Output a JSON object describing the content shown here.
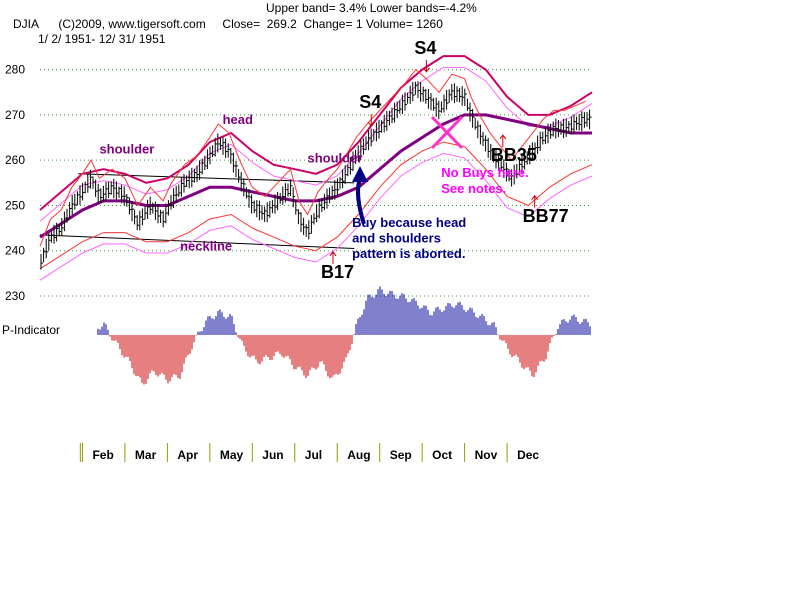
{
  "header": {
    "line1": "Upper band= 3.4%  Lower bands=-4.2%",
    "line2": "DJIA      (C)2009, www.tigersoft.com     Close=  269.2  Change= 1 Volume= 1260",
    "line3": "1/ 2/ 1951- 12/ 31/ 1951"
  },
  "colors": {
    "price_bars": "#000000",
    "upper_band": "#cc0066",
    "lower_band": "#ff3333",
    "moving_average": "#800080",
    "envelope_thin": "#ff66ff",
    "indicator_positive": "#000099",
    "indicator_negative": "#cc0000",
    "gridline": "#339933",
    "signal_arrow": "#cc0000",
    "month_ticks": "#999900"
  },
  "chart_data": [
    {
      "type": "line",
      "subtype": "ohlc-bars-with-bands",
      "title": "DJIA",
      "xlabel": "",
      "ylabel": "",
      "ylim": [
        230,
        285
      ],
      "yticks": [
        230,
        240,
        250,
        260,
        270,
        280
      ],
      "grid": true,
      "months": [
        "Feb",
        "Mar",
        "Apr",
        "May",
        "Jun",
        "Jul",
        "Aug",
        "Sep",
        "Oct",
        "Nov",
        "Dec"
      ],
      "series": [
        {
          "role": "price",
          "points": [
            {
              "m": 0.0,
              "v": 237
            },
            {
              "m": 0.25,
              "v": 243
            },
            {
              "m": 0.5,
              "v": 245
            },
            {
              "m": 0.75,
              "v": 250
            },
            {
              "m": 1.0,
              "v": 253
            },
            {
              "m": 1.2,
              "v": 256
            },
            {
              "m": 1.4,
              "v": 252
            },
            {
              "m": 1.7,
              "v": 254
            },
            {
              "m": 2.0,
              "v": 252
            },
            {
              "m": 2.3,
              "v": 246
            },
            {
              "m": 2.6,
              "v": 250
            },
            {
              "m": 2.9,
              "v": 247
            },
            {
              "m": 3.1,
              "v": 251
            },
            {
              "m": 3.4,
              "v": 255
            },
            {
              "m": 3.7,
              "v": 257
            },
            {
              "m": 4.0,
              "v": 261
            },
            {
              "m": 4.2,
              "v": 264
            },
            {
              "m": 4.45,
              "v": 262
            },
            {
              "m": 4.7,
              "v": 256
            },
            {
              "m": 5.0,
              "v": 250
            },
            {
              "m": 5.3,
              "v": 248
            },
            {
              "m": 5.6,
              "v": 251
            },
            {
              "m": 5.9,
              "v": 254
            },
            {
              "m": 6.1,
              "v": 247
            },
            {
              "m": 6.3,
              "v": 244
            },
            {
              "m": 6.55,
              "v": 249
            },
            {
              "m": 6.8,
              "v": 252
            },
            {
              "m": 7.0,
              "v": 254
            },
            {
              "m": 7.2,
              "v": 257
            },
            {
              "m": 7.45,
              "v": 261
            },
            {
              "m": 7.7,
              "v": 264
            },
            {
              "m": 8.0,
              "v": 267
            },
            {
              "m": 8.3,
              "v": 270
            },
            {
              "m": 8.6,
              "v": 273
            },
            {
              "m": 8.85,
              "v": 276
            },
            {
              "m": 9.1,
              "v": 274
            },
            {
              "m": 9.4,
              "v": 271
            },
            {
              "m": 9.7,
              "v": 275
            },
            {
              "m": 10.0,
              "v": 274
            },
            {
              "m": 10.15,
              "v": 270
            },
            {
              "m": 10.35,
              "v": 266
            },
            {
              "m": 10.6,
              "v": 262
            },
            {
              "m": 10.85,
              "v": 259
            },
            {
              "m": 11.1,
              "v": 256
            },
            {
              "m": 11.35,
              "v": 259
            },
            {
              "m": 11.6,
              "v": 262
            },
            {
              "m": 11.85,
              "v": 265
            },
            {
              "m": 12.1,
              "v": 267
            },
            {
              "m": 12.35,
              "v": 267
            },
            {
              "m": 12.6,
              "v": 268
            },
            {
              "m": 12.85,
              "v": 269
            }
          ]
        },
        {
          "role": "upper_band",
          "points": [
            {
              "m": 0.0,
              "v": 249
            },
            {
              "m": 0.5,
              "v": 253
            },
            {
              "m": 1.0,
              "v": 257
            },
            {
              "m": 1.5,
              "v": 258
            },
            {
              "m": 2.0,
              "v": 257
            },
            {
              "m": 2.5,
              "v": 255
            },
            {
              "m": 3.0,
              "v": 256
            },
            {
              "m": 3.5,
              "v": 259
            },
            {
              "m": 4.0,
              "v": 264
            },
            {
              "m": 4.5,
              "v": 266
            },
            {
              "m": 5.0,
              "v": 262
            },
            {
              "m": 5.5,
              "v": 259
            },
            {
              "m": 6.0,
              "v": 258
            },
            {
              "m": 6.5,
              "v": 257
            },
            {
              "m": 7.0,
              "v": 259
            },
            {
              "m": 7.5,
              "v": 264
            },
            {
              "m": 8.0,
              "v": 270
            },
            {
              "m": 8.5,
              "v": 276
            },
            {
              "m": 9.0,
              "v": 280
            },
            {
              "m": 9.5,
              "v": 283
            },
            {
              "m": 10.0,
              "v": 283
            },
            {
              "m": 10.5,
              "v": 280
            },
            {
              "m": 11.0,
              "v": 274
            },
            {
              "m": 11.5,
              "v": 270
            },
            {
              "m": 12.0,
              "v": 270
            },
            {
              "m": 12.5,
              "v": 272
            },
            {
              "m": 13.0,
              "v": 275
            }
          ]
        },
        {
          "role": "moving_average",
          "points": [
            {
              "m": 0.0,
              "v": 243
            },
            {
              "m": 0.5,
              "v": 246
            },
            {
              "m": 1.0,
              "v": 249
            },
            {
              "m": 1.5,
              "v": 251
            },
            {
              "m": 2.0,
              "v": 251
            },
            {
              "m": 2.5,
              "v": 250
            },
            {
              "m": 3.0,
              "v": 250
            },
            {
              "m": 3.5,
              "v": 252
            },
            {
              "m": 4.0,
              "v": 254
            },
            {
              "m": 4.5,
              "v": 254
            },
            {
              "m": 5.0,
              "v": 253
            },
            {
              "m": 5.5,
              "v": 252
            },
            {
              "m": 6.0,
              "v": 251
            },
            {
              "m": 6.5,
              "v": 251
            },
            {
              "m": 7.0,
              "v": 252
            },
            {
              "m": 7.5,
              "v": 254
            },
            {
              "m": 8.0,
              "v": 258
            },
            {
              "m": 8.5,
              "v": 262
            },
            {
              "m": 9.0,
              "v": 265
            },
            {
              "m": 9.5,
              "v": 268
            },
            {
              "m": 10.0,
              "v": 270
            },
            {
              "m": 10.5,
              "v": 270
            },
            {
              "m": 11.0,
              "v": 269
            },
            {
              "m": 11.5,
              "v": 268
            },
            {
              "m": 12.0,
              "v": 267
            },
            {
              "m": 12.5,
              "v": 266
            },
            {
              "m": 13.0,
              "v": 266
            }
          ]
        },
        {
          "role": "lower_band",
          "points": [
            {
              "m": 0.0,
              "v": 236
            },
            {
              "m": 0.5,
              "v": 239
            },
            {
              "m": 1.0,
              "v": 242
            },
            {
              "m": 1.5,
              "v": 244
            },
            {
              "m": 2.0,
              "v": 244
            },
            {
              "m": 2.5,
              "v": 242
            },
            {
              "m": 3.0,
              "v": 242
            },
            {
              "m": 3.5,
              "v": 244
            },
            {
              "m": 4.0,
              "v": 247
            },
            {
              "m": 4.5,
              "v": 248
            },
            {
              "m": 5.0,
              "v": 245
            },
            {
              "m": 5.5,
              "v": 243
            },
            {
              "m": 6.0,
              "v": 241
            },
            {
              "m": 6.5,
              "v": 240
            },
            {
              "m": 7.0,
              "v": 243
            },
            {
              "m": 7.5,
              "v": 248
            },
            {
              "m": 8.0,
              "v": 254
            },
            {
              "m": 8.5,
              "v": 259
            },
            {
              "m": 9.0,
              "v": 262
            },
            {
              "m": 9.5,
              "v": 264
            },
            {
              "m": 10.0,
              "v": 263
            },
            {
              "m": 10.5,
              "v": 258
            },
            {
              "m": 11.0,
              "v": 252
            },
            {
              "m": 11.5,
              "v": 250
            },
            {
              "m": 12.0,
              "v": 254
            },
            {
              "m": 12.5,
              "v": 257
            },
            {
              "m": 13.0,
              "v": 259
            }
          ]
        },
        {
          "role": "neckline",
          "points": [
            {
              "m": 0.0,
              "v": 243.5
            },
            {
              "m": 7.4,
              "v": 240.5
            }
          ]
        },
        {
          "role": "upper_trendline",
          "points": [
            {
              "m": 0.9,
              "v": 257
            },
            {
              "m": 7.4,
              "v": 255
            }
          ]
        }
      ],
      "signals": [
        {
          "label": "S4",
          "m": 7.8,
          "v": 271.5,
          "kind": "sell",
          "color": "#000000"
        },
        {
          "label": "S4",
          "m": 9.1,
          "v": 283.5,
          "kind": "sell",
          "color": "#000000"
        },
        {
          "label": "B17",
          "m": 6.9,
          "v": 234,
          "kind": "buy",
          "color": "#000000"
        },
        {
          "label": "BB35",
          "m": 10.9,
          "v": 259.8,
          "kind": "buy",
          "color": "#000000"
        },
        {
          "label": "BB77",
          "m": 11.65,
          "v": 246.4,
          "kind": "buy",
          "color": "#000000"
        }
      ],
      "annotations": [
        {
          "text": "shoulder",
          "m": 1.4,
          "v": 261.5,
          "color": "#800080",
          "size": 13
        },
        {
          "text": "head",
          "m": 4.3,
          "v": 268,
          "color": "#800080",
          "size": 13
        },
        {
          "text": "shoulder",
          "m": 6.3,
          "v": 259.5,
          "color": "#800080",
          "size": 13
        },
        {
          "text": "neckline",
          "m": 3.3,
          "v": 240,
          "color": "#800080",
          "size": 13
        },
        {
          "text": "No Buys here.",
          "m": 9.45,
          "v": 256.3,
          "color": "#ff00ff",
          "size": 13
        },
        {
          "text": "See notes.",
          "m": 9.45,
          "v": 252.7,
          "color": "#ff00ff",
          "size": 13
        },
        {
          "text": "Buy because head",
          "m": 7.35,
          "v": 245.2,
          "color": "#000080",
          "size": 13
        },
        {
          "text": "and shoulders",
          "m": 7.35,
          "v": 241.8,
          "color": "#000080",
          "size": 13
        },
        {
          "text": "pattern is aborted.",
          "m": 7.35,
          "v": 238.4,
          "color": "#000080",
          "size": 13
        }
      ]
    },
    {
      "type": "bar",
      "title": "P-Indicator",
      "xlabel": "",
      "ylabel": "",
      "ylim": [
        -60,
        50
      ],
      "points": [
        {
          "m": 0.0,
          "v": 10
        },
        {
          "m": 0.3,
          "v": 30
        },
        {
          "m": 0.6,
          "v": 15
        },
        {
          "m": 0.9,
          "v": 20
        },
        {
          "m": 1.2,
          "v": 5
        },
        {
          "m": 1.5,
          "v": 12
        },
        {
          "m": 1.8,
          "v": -10
        },
        {
          "m": 2.1,
          "v": -30
        },
        {
          "m": 2.4,
          "v": -55
        },
        {
          "m": 2.7,
          "v": -40
        },
        {
          "m": 3.0,
          "v": -50
        },
        {
          "m": 3.3,
          "v": -45
        },
        {
          "m": 3.6,
          "v": -10
        },
        {
          "m": 3.9,
          "v": 15
        },
        {
          "m": 4.2,
          "v": 25
        },
        {
          "m": 4.5,
          "v": 20
        },
        {
          "m": 4.8,
          "v": -15
        },
        {
          "m": 5.1,
          "v": -30
        },
        {
          "m": 5.4,
          "v": -25
        },
        {
          "m": 5.7,
          "v": -20
        },
        {
          "m": 6.0,
          "v": -35
        },
        {
          "m": 6.3,
          "v": -45
        },
        {
          "m": 6.6,
          "v": -30
        },
        {
          "m": 6.9,
          "v": -50
        },
        {
          "m": 7.2,
          "v": -30
        },
        {
          "m": 7.45,
          "v": 10
        },
        {
          "m": 7.7,
          "v": 40
        },
        {
          "m": 8.0,
          "v": 50
        },
        {
          "m": 8.3,
          "v": 45
        },
        {
          "m": 8.6,
          "v": 42
        },
        {
          "m": 8.9,
          "v": 35
        },
        {
          "m": 9.2,
          "v": 25
        },
        {
          "m": 9.5,
          "v": 30
        },
        {
          "m": 9.8,
          "v": 35
        },
        {
          "m": 10.1,
          "v": 28
        },
        {
          "m": 10.4,
          "v": 20
        },
        {
          "m": 10.7,
          "v": 10
        },
        {
          "m": 11.0,
          "v": -15
        },
        {
          "m": 11.3,
          "v": -30
        },
        {
          "m": 11.6,
          "v": -45
        },
        {
          "m": 11.9,
          "v": -25
        },
        {
          "m": 12.2,
          "v": 10
        },
        {
          "m": 12.5,
          "v": 20
        },
        {
          "m": 12.8,
          "v": 15
        },
        {
          "m": 13.0,
          "v": 12
        }
      ]
    }
  ]
}
